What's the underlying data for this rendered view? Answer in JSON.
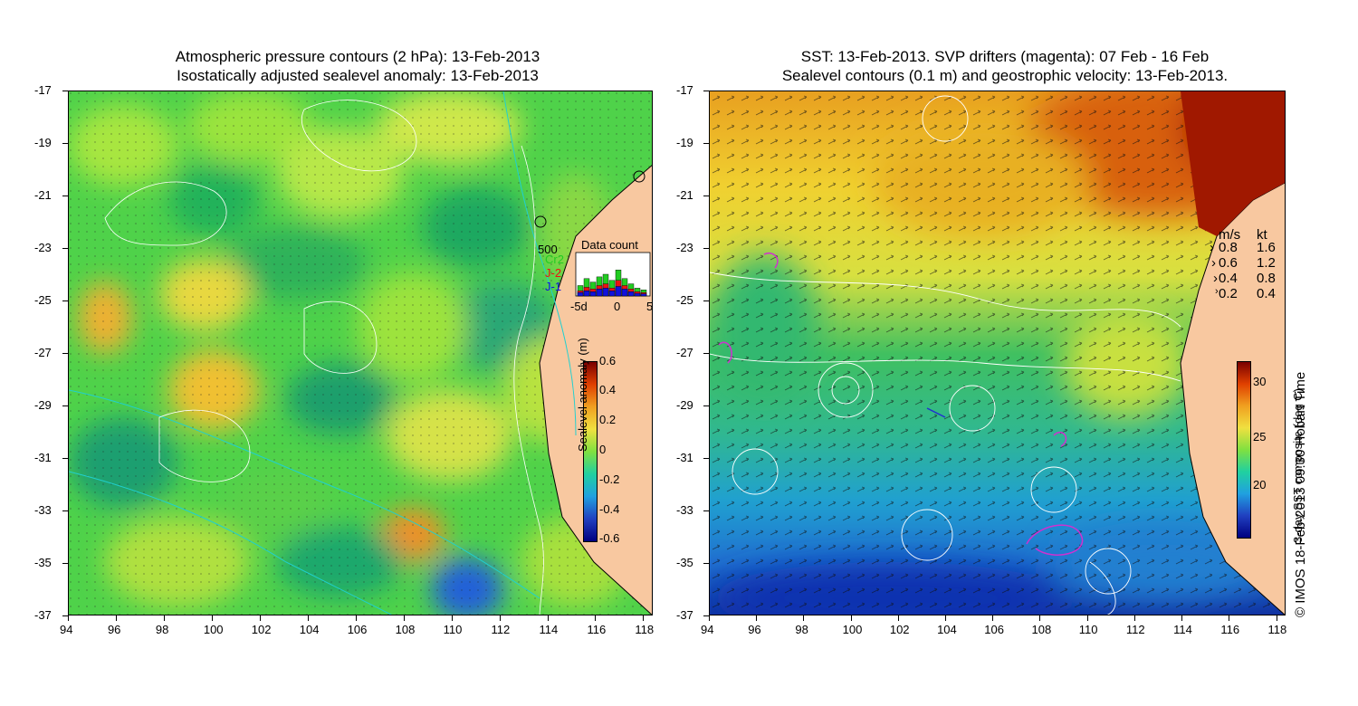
{
  "left_panel": {
    "title_line1": "Atmospheric pressure contours (2 hPa): 13-Feb-2013",
    "title_line2": "Isostatically adjusted sealevel anomaly: 13-Feb-2013",
    "colorbar": {
      "label": "Sealevel anomaly (m)",
      "ticks": [
        "0.6",
        "0.4",
        "0.2",
        "0",
        "-0.2",
        "-0.4",
        "-0.6"
      ]
    },
    "data_count": {
      "title": "Data count",
      "ymax": "500",
      "series": [
        "Cr2",
        "J-2",
        "J-1"
      ],
      "xticks": [
        "-5d",
        "0",
        "5"
      ],
      "colors": {
        "Cr2": "#22cc22",
        "J-2": "#ee1111",
        "J-1": "#1111dd"
      },
      "bars_Cr2": [
        120,
        200,
        160,
        220,
        250,
        180,
        300,
        200,
        140,
        90,
        70
      ],
      "bars_J2": [
        60,
        100,
        80,
        120,
        140,
        90,
        180,
        120,
        80,
        50,
        40
      ],
      "bars_J1": [
        40,
        60,
        50,
        80,
        90,
        60,
        110,
        80,
        50,
        30,
        25
      ]
    }
  },
  "right_panel": {
    "title_line1": "SST: 13-Feb-2013. SVP drifters (magenta): 07 Feb - 16 Feb",
    "title_line2": "Sealevel contours (0.1 m) and geostrophic velocity: 13-Feb-2013.",
    "colorbar": {
      "label": "3-day SST composite (deg C)",
      "ticks": [
        "30",
        "25",
        "20"
      ]
    },
    "speed_legend": {
      "header_ms": "m/s",
      "header_kt": "kt",
      "rows": [
        {
          "ms": "0.8",
          "kt": "1.6"
        },
        {
          "ms": "0.6",
          "kt": "1.2"
        },
        {
          "ms": "0.4",
          "kt": "0.8"
        },
        {
          "ms": "0.2",
          "kt": "0.4"
        }
      ]
    }
  },
  "axes": {
    "lat_ticks": [
      "-17",
      "-19",
      "-21",
      "-23",
      "-25",
      "-27",
      "-29",
      "-31",
      "-33",
      "-35",
      "-37"
    ],
    "lon_ticks": [
      "94",
      "96",
      "98",
      "100",
      "102",
      "104",
      "106",
      "108",
      "110",
      "112",
      "114",
      "116",
      "118"
    ]
  },
  "credit": "© IMOS 18-Feb-2013 09:30 Hobart Time"
}
